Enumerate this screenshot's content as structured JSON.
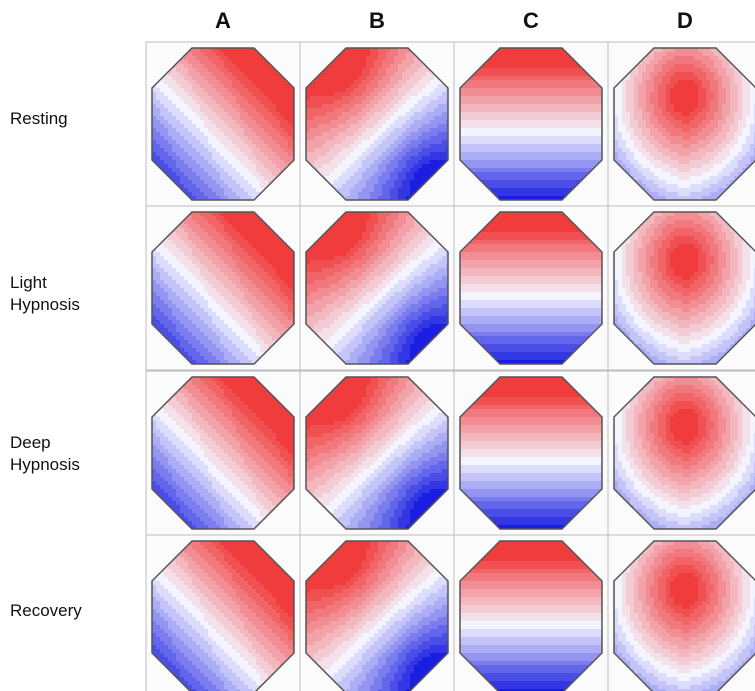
{
  "columns": [
    {
      "label": "A"
    },
    {
      "label": "B"
    },
    {
      "label": "C"
    },
    {
      "label": "D"
    }
  ],
  "rows": [
    {
      "lines": [
        "Resting"
      ]
    },
    {
      "lines": [
        "Light",
        "Hypnosis"
      ]
    },
    {
      "lines": [
        "Deep",
        "Hypnosis"
      ]
    },
    {
      "lines": [
        "Recovery"
      ]
    }
  ],
  "colors": {
    "positive": "#f03c3c",
    "neutral": "#f4f4ff",
    "negative": "#1a1ee0",
    "cell_border": "#bdbdbd",
    "octagon_outline": "#555555"
  }
}
